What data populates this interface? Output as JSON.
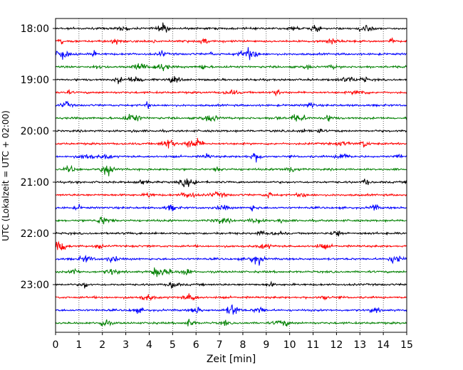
{
  "chart_data": {
    "type": "line",
    "xlabel": "Zeit  [min]",
    "ylabel": "UTC (Lokalzeit = UTC + 02:00)",
    "xlim": [
      0,
      15
    ],
    "x_ticks": [
      "0",
      "1",
      "2",
      "3",
      "4",
      "5",
      "6",
      "7",
      "8",
      "9",
      "10",
      "11",
      "12",
      "13",
      "14",
      "15"
    ],
    "y_ticks": [
      {
        "label": "18:00",
        "trace": 0
      },
      {
        "label": "19:00",
        "trace": 4
      },
      {
        "label": "20:00",
        "trace": 8
      },
      {
        "label": "21:00",
        "trace": 12
      },
      {
        "label": "22:00",
        "trace": 16
      },
      {
        "label": "23:00",
        "trace": 20
      }
    ],
    "grid": "vertical dotted at each minute",
    "trace_interval_minutes": 15,
    "trace_count": 24,
    "first_trace_start": "18:00",
    "trace_colors": [
      "#000000",
      "#ff0000",
      "#0000ff",
      "#008000"
    ]
  }
}
